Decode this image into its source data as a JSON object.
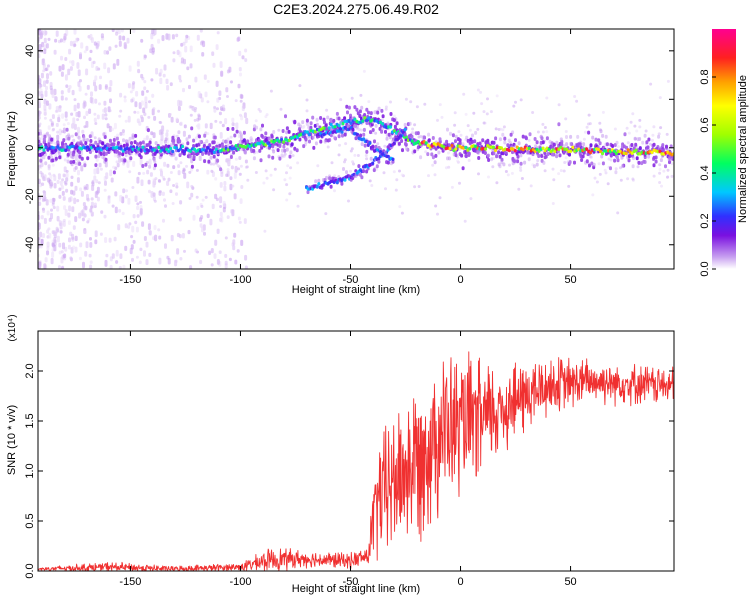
{
  "title": "C2E3.2024.275.06.49.R02",
  "chart_data": [
    {
      "type": "heatmap",
      "xlabel": "Height of straight line (km)",
      "ylabel": "Frequency (Hz)",
      "xlim": [
        -192,
        97
      ],
      "ylim": [
        -50,
        49
      ],
      "xticks": [
        -150,
        -100,
        -50,
        0,
        50
      ],
      "yticks": [
        -40,
        -20,
        0,
        20,
        40
      ],
      "colorbar": {
        "label": "Normalized spectral amplitude",
        "range": [
          0,
          1
        ],
        "ticks": [
          0.0,
          0.2,
          0.4,
          0.6,
          0.8
        ],
        "colormap": [
          "#ffffff",
          "#c8a0f0",
          "#7a10e0",
          "#3030ff",
          "#00c8ff",
          "#00ff60",
          "#a0ff00",
          "#ffff00",
          "#ffa000",
          "#ff2020",
          "#ff0090"
        ]
      },
      "features": [
        {
          "name": "main_carrier",
          "x_range": [
            -192,
            97
          ],
          "freq_hz": [
            [
              -192,
              0
            ],
            [
              -110,
              -1
            ],
            [
              -80,
              3
            ],
            [
              -55,
              10
            ],
            [
              -40,
              12
            ],
            [
              -20,
              2
            ],
            [
              0,
              0
            ],
            [
              97,
              -2
            ]
          ]
        },
        {
          "name": "branch_lower_left",
          "freq_hz": [
            [
              -70,
              -17
            ],
            [
              -50,
              -12
            ],
            [
              -35,
              -3
            ],
            [
              -25,
              8
            ]
          ]
        },
        {
          "name": "branch_middle",
          "freq_hz": [
            [
              -65,
              5
            ],
            [
              -50,
              8
            ],
            [
              -40,
              0
            ],
            [
              -30,
              -5
            ]
          ]
        }
      ]
    },
    {
      "type": "line",
      "xlabel": "Height of straight line (km)",
      "ylabel": "SNR (10 * v/v)",
      "yscale_label": "(x10⁴)",
      "xlim": [
        -192,
        97
      ],
      "ylim": [
        0,
        2.4
      ],
      "xticks": [
        -150,
        -100,
        -50,
        0,
        50
      ],
      "yticks": [
        0.0,
        0.5,
        1.0,
        1.5,
        2.0
      ],
      "color": "#f03030",
      "series_profile": [
        {
          "x": -192,
          "y": 0.02,
          "spread": 0.02
        },
        {
          "x": -160,
          "y": 0.04,
          "spread": 0.05
        },
        {
          "x": -130,
          "y": 0.02,
          "spread": 0.03
        },
        {
          "x": -100,
          "y": 0.04,
          "spread": 0.04
        },
        {
          "x": -85,
          "y": 0.12,
          "spread": 0.12
        },
        {
          "x": -70,
          "y": 0.12,
          "spread": 0.08
        },
        {
          "x": -50,
          "y": 0.1,
          "spread": 0.08
        },
        {
          "x": -42,
          "y": 0.15,
          "spread": 0.1
        },
        {
          "x": -38,
          "y": 0.7,
          "spread": 0.6
        },
        {
          "x": -30,
          "y": 0.9,
          "spread": 0.7
        },
        {
          "x": -20,
          "y": 1.1,
          "spread": 0.8
        },
        {
          "x": -10,
          "y": 1.4,
          "spread": 0.8
        },
        {
          "x": 0,
          "y": 1.45,
          "spread": 0.7
        },
        {
          "x": 10,
          "y": 1.5,
          "spread": 0.6
        },
        {
          "x": 20,
          "y": 1.65,
          "spread": 0.45
        },
        {
          "x": 40,
          "y": 1.85,
          "spread": 0.3
        },
        {
          "x": 60,
          "y": 1.9,
          "spread": 0.22
        },
        {
          "x": 97,
          "y": 1.85,
          "spread": 0.18
        }
      ]
    }
  ]
}
